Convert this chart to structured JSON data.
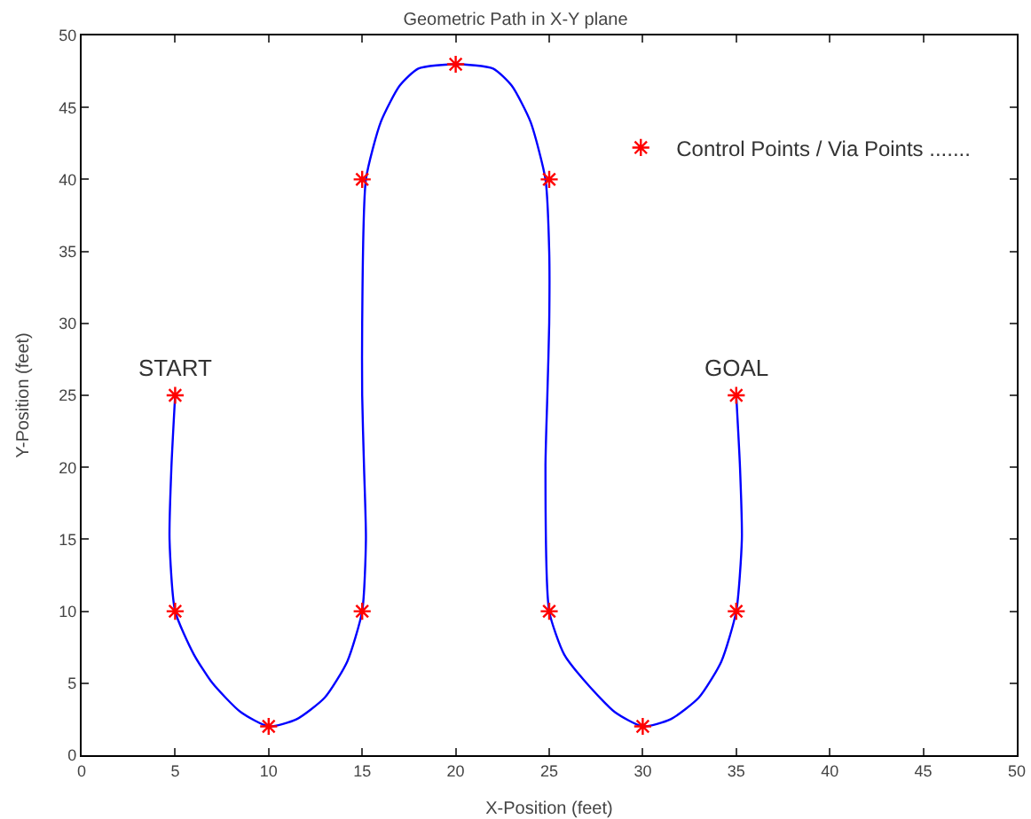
{
  "chart_data": {
    "type": "line",
    "title": "Geometric Path in X-Y plane",
    "xlabel": "X-Position (feet)",
    "ylabel": "Y-Position (feet)",
    "xlim": [
      0,
      50
    ],
    "ylim": [
      0,
      50
    ],
    "xticks": [
      0,
      5,
      10,
      15,
      20,
      25,
      30,
      35,
      40,
      45,
      50
    ],
    "yticks": [
      0,
      5,
      10,
      15,
      20,
      25,
      30,
      35,
      40,
      45,
      50
    ],
    "grid": false,
    "legend": "top right",
    "series": [
      {
        "type": "line",
        "color": "#0000ff",
        "marker": "none",
        "line_style": "solid",
        "x": [
          5,
          4.8,
          4.7,
          5,
          6,
          7,
          8.5,
          10,
          11.5,
          13,
          14.2,
          15,
          15.2,
          15.1,
          15,
          15,
          15.2,
          16,
          17,
          18,
          20,
          22,
          23,
          24,
          24.8,
          25,
          25,
          24.9,
          24.8,
          25,
          25.8,
          27,
          28.5,
          30,
          31.5,
          33,
          34.2,
          35,
          35.3,
          35.2,
          35
        ],
        "values": [
          25,
          20,
          15,
          10,
          7,
          5,
          3,
          2,
          2.5,
          4,
          6.5,
          10,
          15,
          20,
          25,
          30,
          40,
          44,
          46.5,
          47.7,
          48,
          47.7,
          46.5,
          44,
          40,
          35,
          30,
          25,
          20,
          10,
          7,
          5,
          3,
          2,
          2.5,
          4,
          6.5,
          10,
          15,
          20,
          25
        ]
      },
      {
        "type": "scatter",
        "name": "Control Points / Via Points .......",
        "color": "#ff0000",
        "marker": "cross",
        "x": [
          5,
          5,
          10,
          15,
          15,
          20,
          25,
          25,
          30,
          35,
          35
        ],
        "values": [
          25,
          10,
          2,
          10,
          40,
          48,
          40,
          10,
          2,
          10,
          25
        ]
      }
    ],
    "annotations": [
      {
        "text": "START",
        "x": 5,
        "y": 25
      },
      {
        "text": "GOAL",
        "x": 35,
        "y": 25
      }
    ]
  }
}
